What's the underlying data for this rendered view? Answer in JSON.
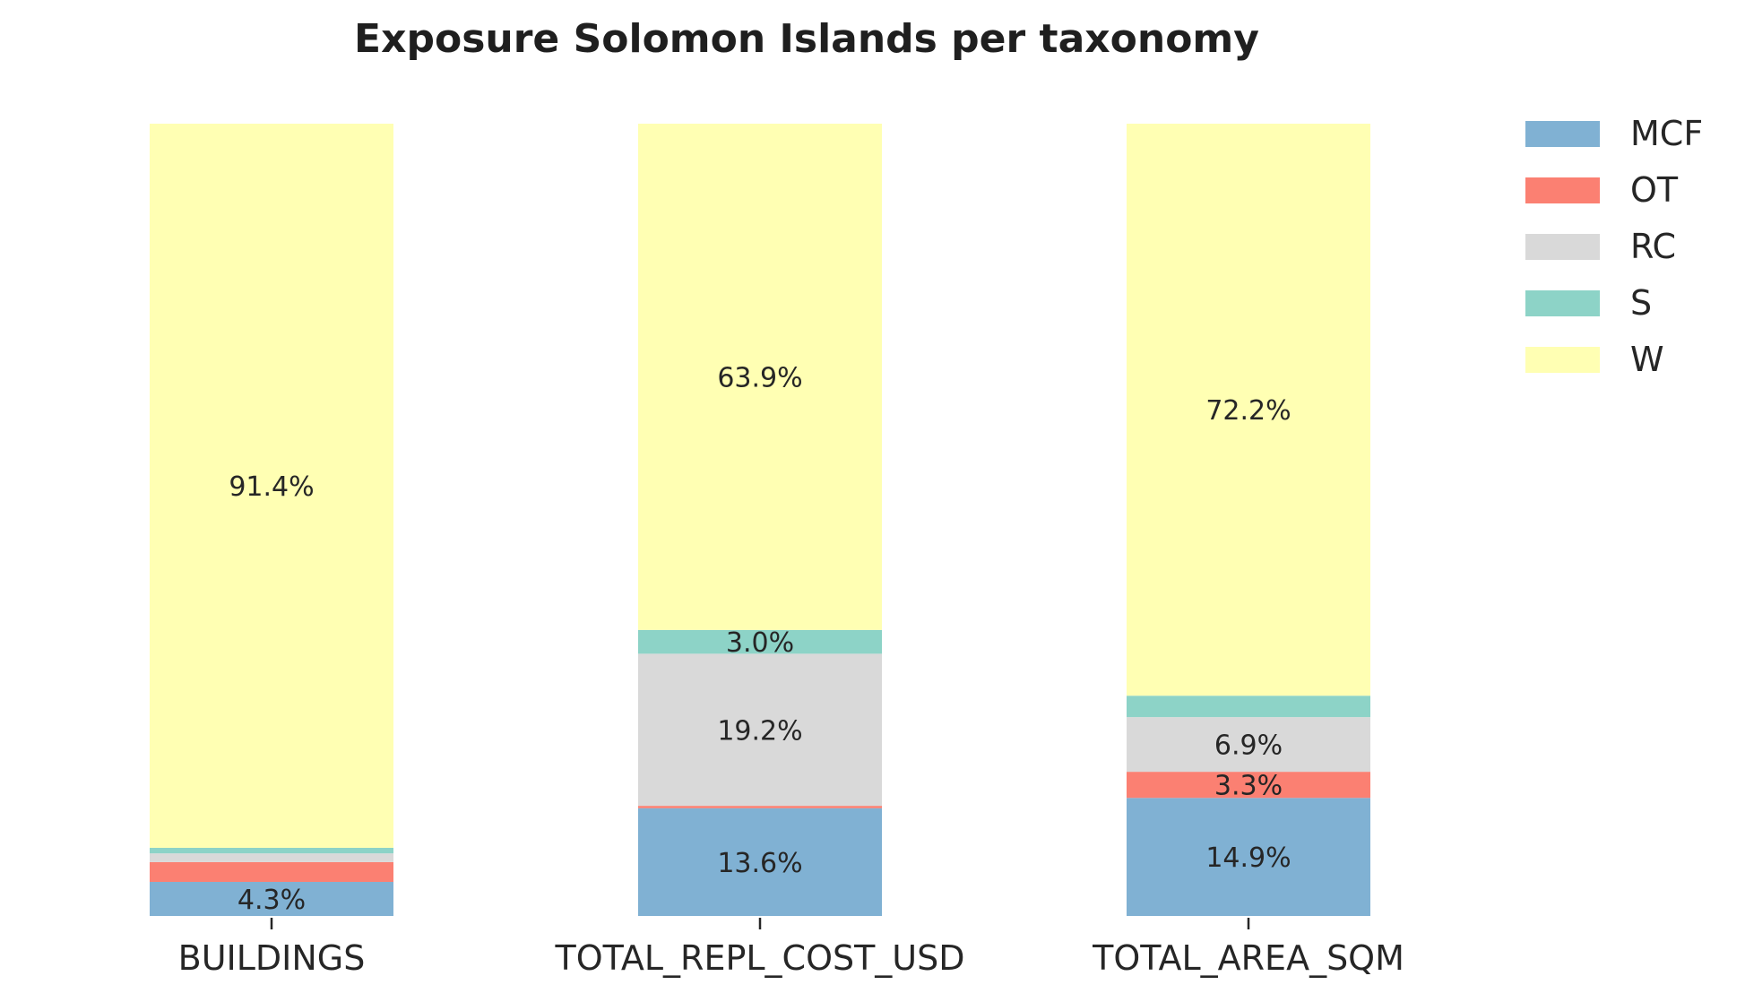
{
  "chart_data": {
    "type": "bar",
    "stacked": true,
    "percent": true,
    "title": "Exposure Solomon Islands per taxonomy",
    "xlabel": "",
    "ylabel": "",
    "ylim": [
      0,
      100
    ],
    "grid": false,
    "legend_position": "top-right",
    "categories": [
      "BUILDINGS",
      "TOTAL_REPL_COST_USD",
      "TOTAL_AREA_SQM"
    ],
    "series": [
      {
        "name": "MCF",
        "color": "#80b1d3",
        "values": [
          4.3,
          13.6,
          14.9
        ],
        "labels": [
          "4.3%",
          "13.6%",
          "14.9%"
        ]
      },
      {
        "name": "OT",
        "color": "#fb8072",
        "values": [
          2.5,
          0.3,
          3.3
        ],
        "labels": [
          "",
          "",
          "3.3%"
        ]
      },
      {
        "name": "RC",
        "color": "#d9d9d9",
        "values": [
          1.1,
          19.2,
          6.9
        ],
        "labels": [
          "",
          "19.2%",
          "6.9%"
        ]
      },
      {
        "name": "S",
        "color": "#8dd3c7",
        "values": [
          0.7,
          3.0,
          2.7
        ],
        "labels": [
          "",
          "3.0%",
          ""
        ]
      },
      {
        "name": "W",
        "color": "#ffffb3",
        "values": [
          91.4,
          63.9,
          72.2
        ],
        "labels": [
          "91.4%",
          "63.9%",
          "72.2%"
        ]
      }
    ]
  }
}
